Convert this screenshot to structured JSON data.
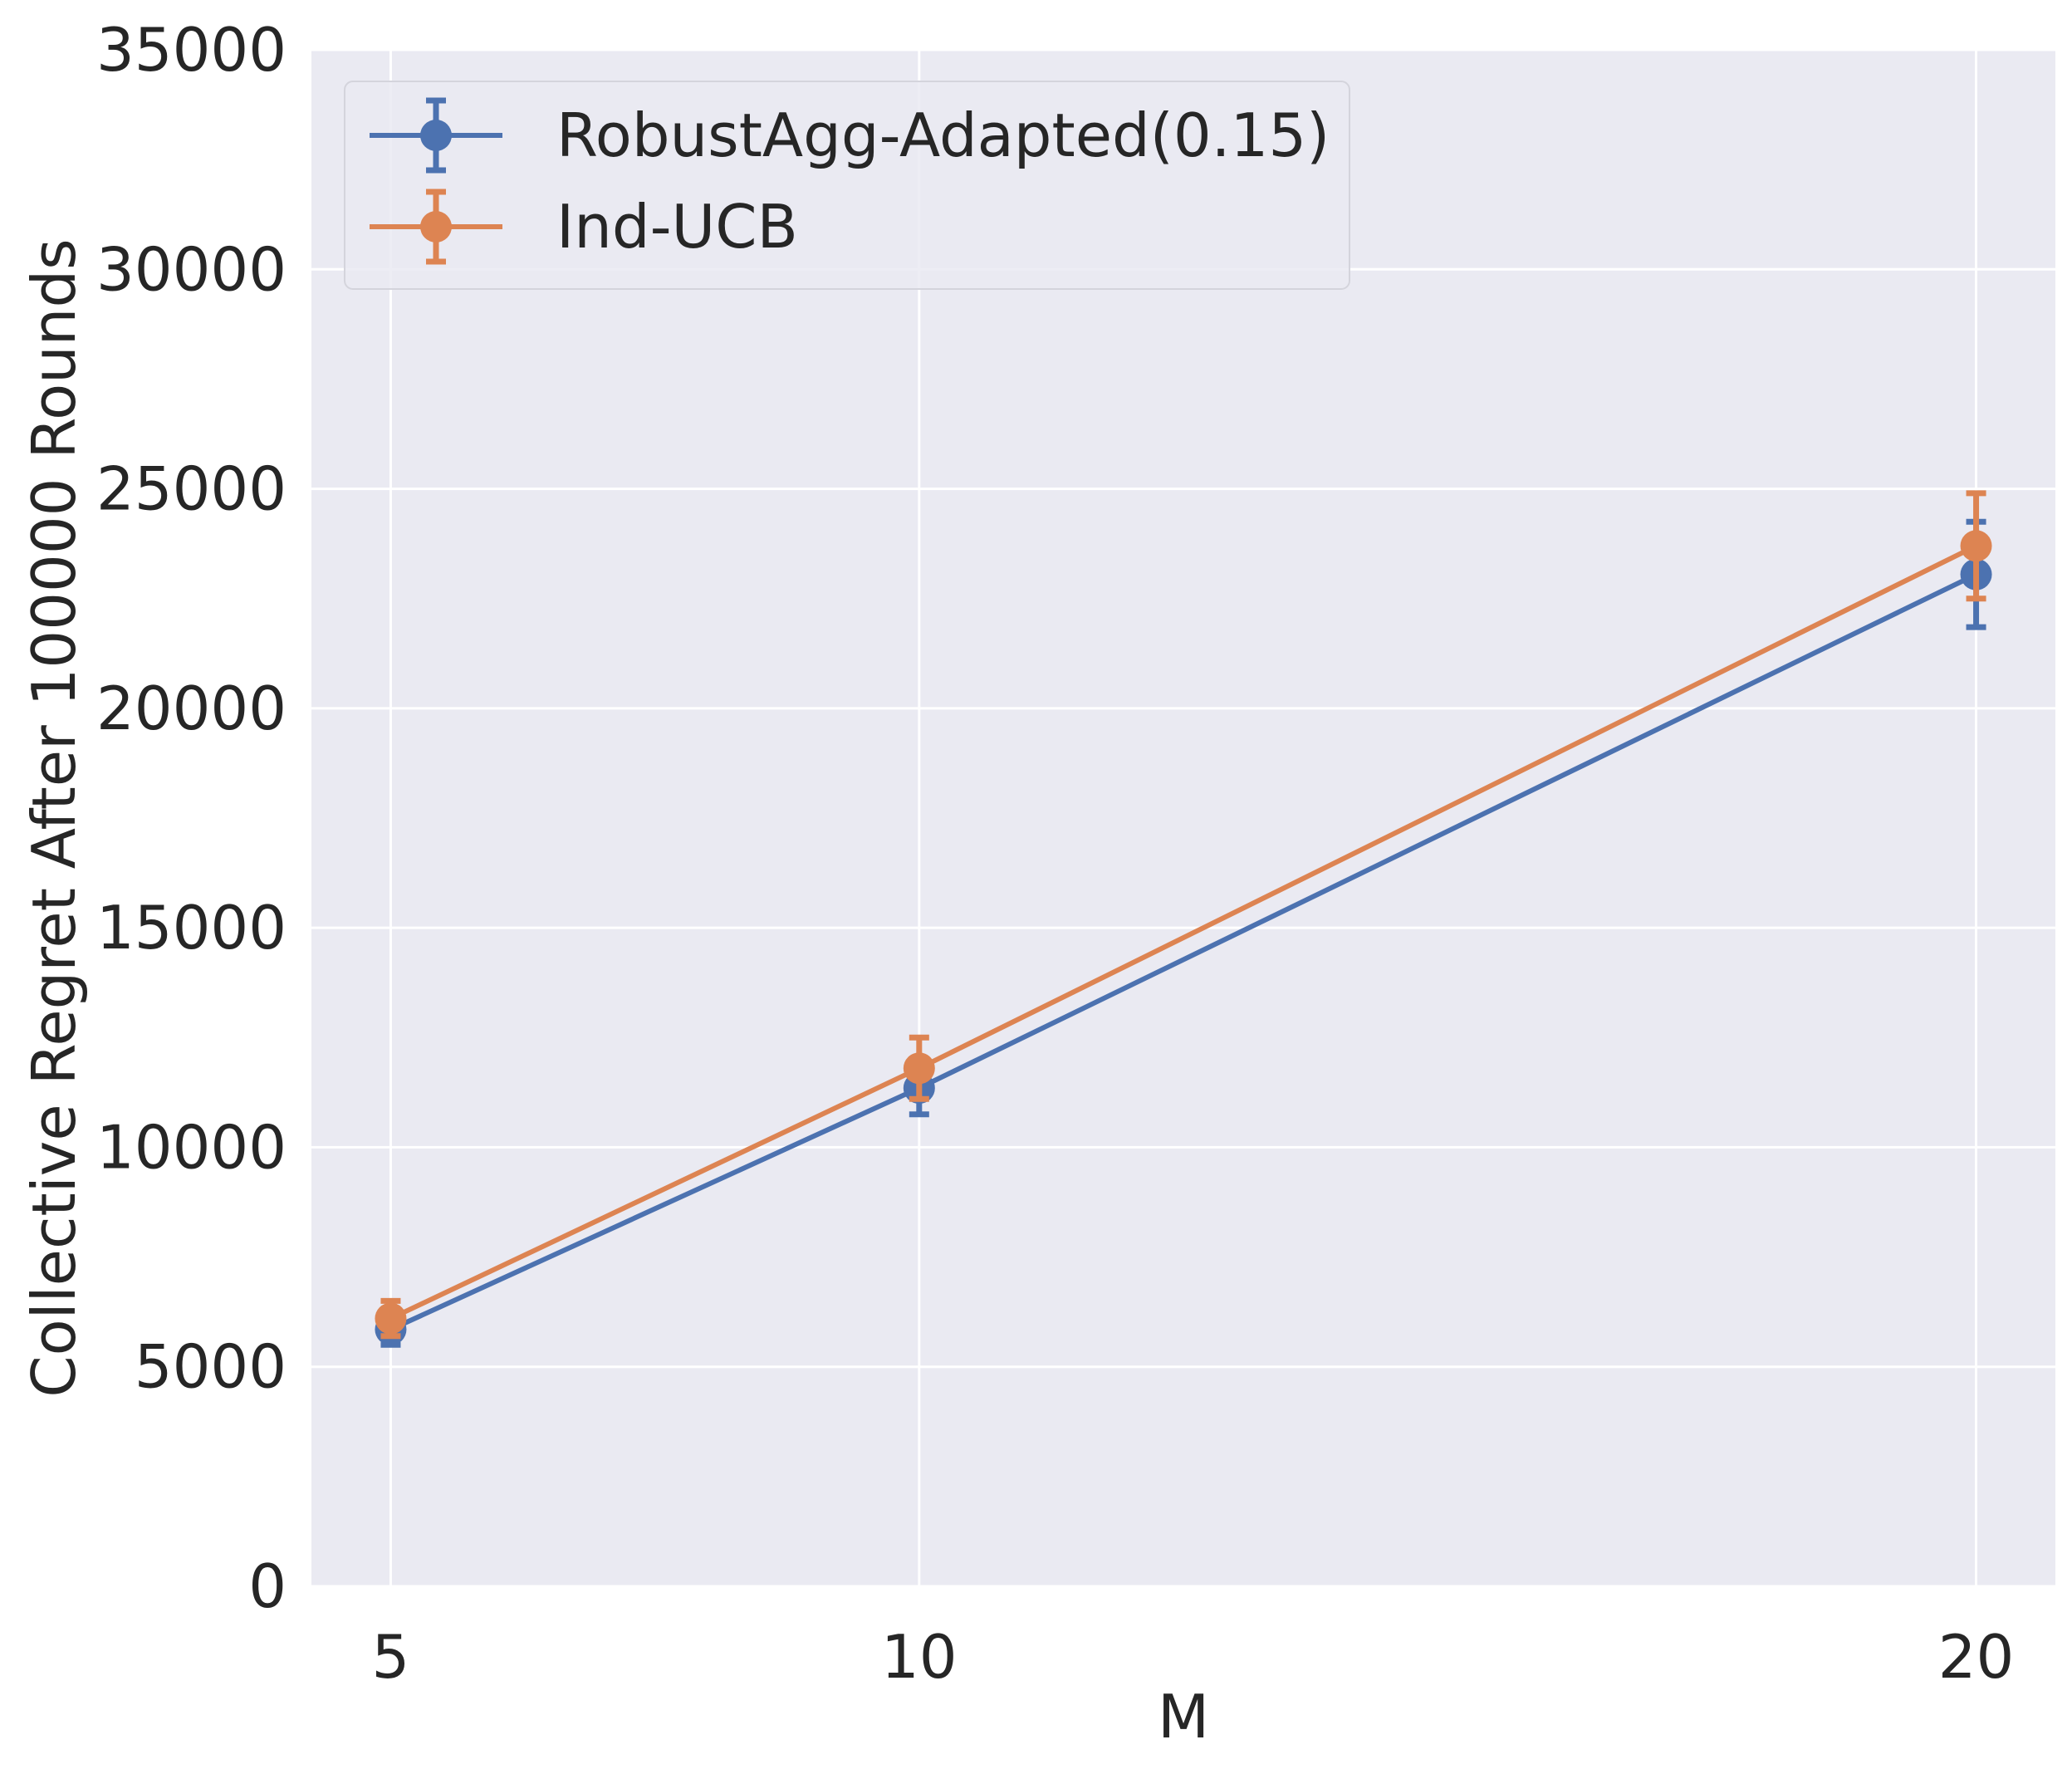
{
  "chart_data": {
    "type": "line",
    "title": "",
    "xlabel": "M",
    "ylabel": "Collective Regret After 100000 Rounds",
    "x": [
      5,
      10,
      20
    ],
    "xticks": [
      "5",
      "10",
      "20"
    ],
    "xlim": [
      4.25,
      20.75
    ],
    "ylim": [
      0,
      35000
    ],
    "yticks": [
      "0",
      "5000",
      "10000",
      "15000",
      "20000",
      "25000",
      "30000",
      "35000"
    ],
    "grid": true,
    "legend_position": "top-left",
    "series": [
      {
        "name": "RobustAgg-Adapted(0.15)",
        "color": "#4c72b0",
        "values": [
          5850,
          11350,
          23050
        ],
        "error": [
          350,
          600,
          1200
        ]
      },
      {
        "name": "Ind-UCB",
        "color": "#dd8452",
        "values": [
          6100,
          11800,
          23700
        ],
        "error": [
          400,
          700,
          1200
        ]
      }
    ]
  }
}
